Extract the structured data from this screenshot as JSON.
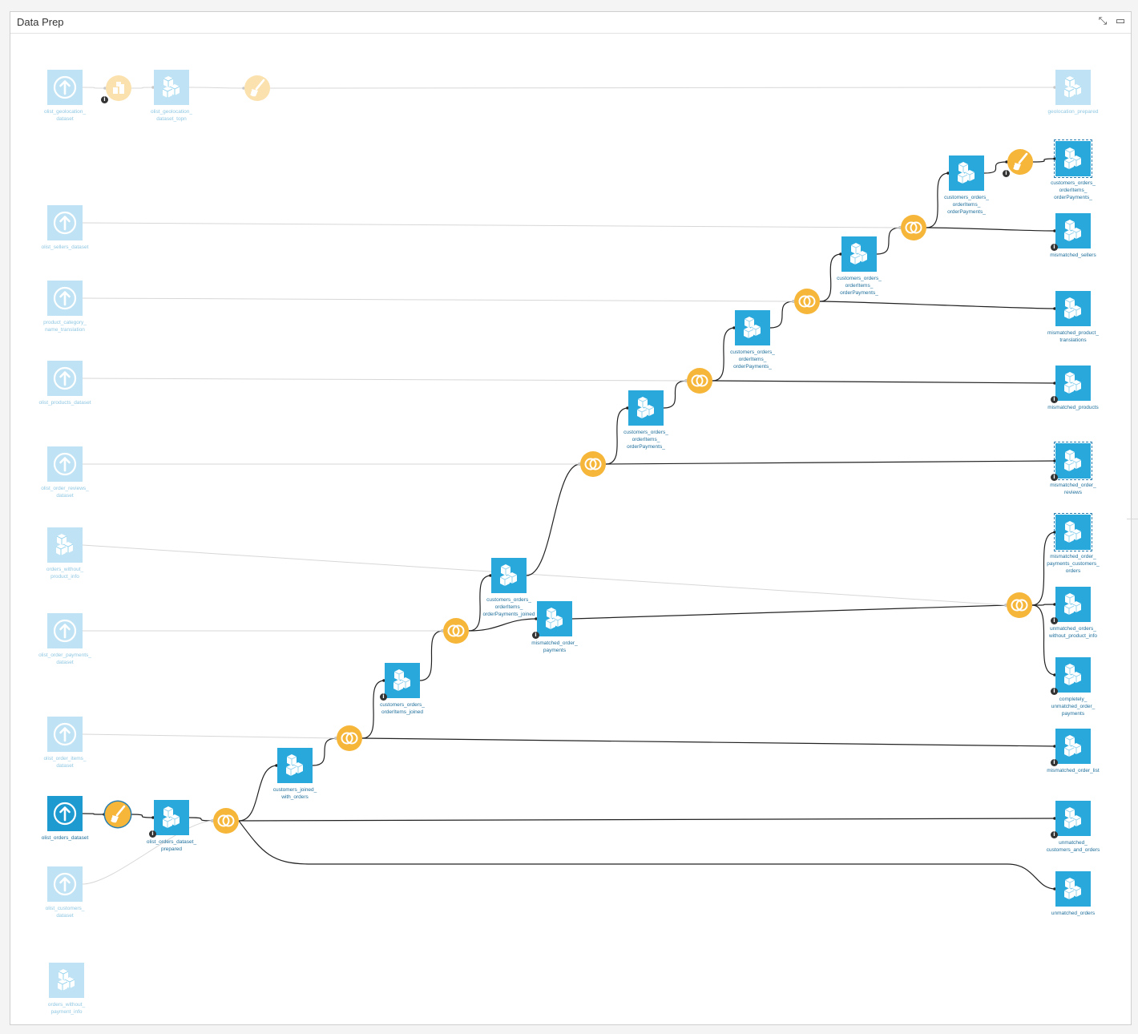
{
  "panel": {
    "title": "Data Prep",
    "icons": {
      "collapse": "collapse-arrows-icon",
      "maximize": "maximize-window-icon"
    }
  },
  "colors": {
    "dataset": "#29a8dc",
    "dataset_faded": "#bfe3f4",
    "recipe": "#f6b63a",
    "recipe_faded": "#fbe1ad",
    "label": "#1f6f9b",
    "label_faded": "#8fc7e2"
  },
  "nodes": [
    {
      "id": "geo_src",
      "kind": "upload",
      "label": "olist_geolocation_\ndataset",
      "faded": true
    },
    {
      "id": "geo_split",
      "kind": "split",
      "label": "",
      "faded": true,
      "info": true
    },
    {
      "id": "geo_topn",
      "kind": "cube",
      "label": "olist_geolocation_\ndataset_topn",
      "faded": true
    },
    {
      "id": "geo_prep",
      "kind": "brush",
      "label": "",
      "faded": true
    },
    {
      "id": "geo_out",
      "kind": "cube",
      "label": "geolocation_prepared",
      "faded": true
    },
    {
      "id": "sellers",
      "kind": "upload",
      "label": "olist_sellers_dataset",
      "faded": true
    },
    {
      "id": "cat_tr",
      "kind": "upload",
      "label": "product_category_\nname_translation",
      "faded": true
    },
    {
      "id": "products",
      "kind": "upload",
      "label": "olist_products_dataset",
      "faded": true
    },
    {
      "id": "reviews",
      "kind": "upload",
      "label": "olist_order_reviews_\ndataset",
      "faded": true
    },
    {
      "id": "ord_wo_pi",
      "kind": "cube",
      "label": "orders_without_\nproduct_info",
      "faded": true
    },
    {
      "id": "payments",
      "kind": "upload",
      "label": "olist_order_payments_\ndataset",
      "faded": true
    },
    {
      "id": "items",
      "kind": "upload",
      "label": "olist_order_items_\ndataset",
      "faded": true
    },
    {
      "id": "orders",
      "kind": "upload",
      "label": "olist_orders_dataset",
      "selected": true
    },
    {
      "id": "customers",
      "kind": "upload",
      "label": "olist_customers_\ndataset",
      "faded": true
    },
    {
      "id": "ord_wo_pay",
      "kind": "cube",
      "label": "orders_without_\npayment_info",
      "faded": true
    },
    {
      "id": "r_prep",
      "kind": "brush",
      "label": "",
      "selected": true
    },
    {
      "id": "ord_prep",
      "kind": "cube",
      "label": "olist_orders_dataset_\nprepared",
      "info": true
    },
    {
      "id": "j1",
      "kind": "join",
      "label": ""
    },
    {
      "id": "cust_orders",
      "kind": "cube",
      "label": "customers_joined_\nwith_orders"
    },
    {
      "id": "j2",
      "kind": "join",
      "label": ""
    },
    {
      "id": "coi",
      "kind": "cube",
      "label": "customers_orders_\norderItems_joined",
      "info": true
    },
    {
      "id": "j3",
      "kind": "join",
      "label": ""
    },
    {
      "id": "coip",
      "kind": "cube",
      "label": "customers_orders_\norderItems_\norderPayments_joined"
    },
    {
      "id": "mm_pay",
      "kind": "cube",
      "label": "mismatched_order_\npayments",
      "info": true
    },
    {
      "id": "j4",
      "kind": "join",
      "label": ""
    },
    {
      "id": "coip2",
      "kind": "cube",
      "label": "customers_orders_\norderItems_\norderPayments_"
    },
    {
      "id": "j5",
      "kind": "join",
      "label": ""
    },
    {
      "id": "coip3",
      "kind": "cube",
      "label": "customers_orders_\norderItems_\norderPayments_"
    },
    {
      "id": "j6",
      "kind": "join",
      "label": ""
    },
    {
      "id": "coip4",
      "kind": "cube",
      "label": "customers_orders_\norderItems_\norderPayments_"
    },
    {
      "id": "j7",
      "kind": "join",
      "label": ""
    },
    {
      "id": "coip5",
      "kind": "cube",
      "label": "customers_orders_\norderItems_\norderPayments_"
    },
    {
      "id": "r_final",
      "kind": "brush",
      "label": "",
      "info": true
    },
    {
      "id": "final_out",
      "kind": "cube",
      "label": "customers_orders_\norderItems_\norderPayments_",
      "dashed": true
    },
    {
      "id": "j8",
      "kind": "join",
      "label": ""
    },
    {
      "id": "mm_sellers",
      "kind": "cube",
      "label": "mismatched_sellers",
      "info": true
    },
    {
      "id": "mm_tr",
      "kind": "cube",
      "label": "mismatched_product_\ntranslations"
    },
    {
      "id": "mm_prod",
      "kind": "cube",
      "label": "mismatched_products",
      "info": true
    },
    {
      "id": "mm_rev",
      "kind": "cube",
      "label": "mismatched_order_\nreviews",
      "info": true,
      "dashed": true
    },
    {
      "id": "mm_opc",
      "kind": "cube",
      "label": "mismatched_order_\npayments_customers_\norders",
      "dashed": true
    },
    {
      "id": "un_wo_pi",
      "kind": "cube",
      "label": "unmatched_orders_\nwithout_product_info",
      "info": true
    },
    {
      "id": "comp_un",
      "kind": "cube",
      "label": "completely_\nunmatched_order_\npayments",
      "info": true
    },
    {
      "id": "mm_list",
      "kind": "cube",
      "label": "mismatched_order_list",
      "info": true
    },
    {
      "id": "un_co",
      "kind": "cube",
      "label": "unmatched_\ncustomers_and_orders",
      "info": true
    },
    {
      "id": "un_orders",
      "kind": "cube",
      "label": "unmatched_orders"
    }
  ]
}
